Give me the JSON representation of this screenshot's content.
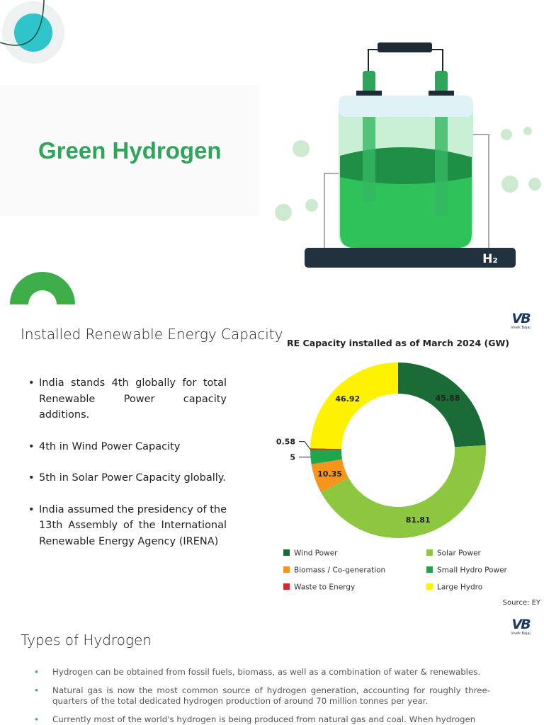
{
  "hero": {
    "title": "Green Hydrogen",
    "illustration_label": "H₂"
  },
  "capacity_section": {
    "heading": "Installed Renewable Energy Capacity",
    "bullets": [
      "India stands 4th globally for total Renewable Power capacity additions.",
      "4th in Wind Power Capacity",
      "5th in Solar Power Capacity globally.",
      "India assumed the presidency of the 13th Assembly of the International Renewable Energy Agency (IRENA)"
    ],
    "logo": {
      "mark": "VB",
      "name": "Vivek Bajaj"
    },
    "source": "Source: EY"
  },
  "chart_data": {
    "type": "donut",
    "title": "RE Capacity installed as of March 2024 (GW)",
    "categories": [
      "Wind Power",
      "Solar Power",
      "Biomass / Co-generation",
      "Small Hydro Power",
      "Waste to Energy",
      "Large Hydro"
    ],
    "values": [
      45.88,
      81.81,
      10.35,
      5,
      0.58,
      46.92
    ],
    "colors": [
      "#1b6b36",
      "#8dc63f",
      "#f7941d",
      "#1fa64a",
      "#d7282e",
      "#fff200"
    ],
    "legend": "bottom"
  },
  "types_section": {
    "heading": "Types of Hydrogen",
    "logo": {
      "mark": "VB",
      "name": "Vivek Bajaj"
    },
    "bullets": [
      "Hydrogen can be obtained from fossil fuels, biomass, as well as a combination of water & renewables.",
      "Natural gas is now the most common source of hydrogen generation, accounting for roughly three-quarters of the total dedicated hydrogen production of around 70 million tonnes per year.",
      "Currently most of the world's hydrogen is being produced from natural gas and coal. When hydrogen"
    ]
  }
}
